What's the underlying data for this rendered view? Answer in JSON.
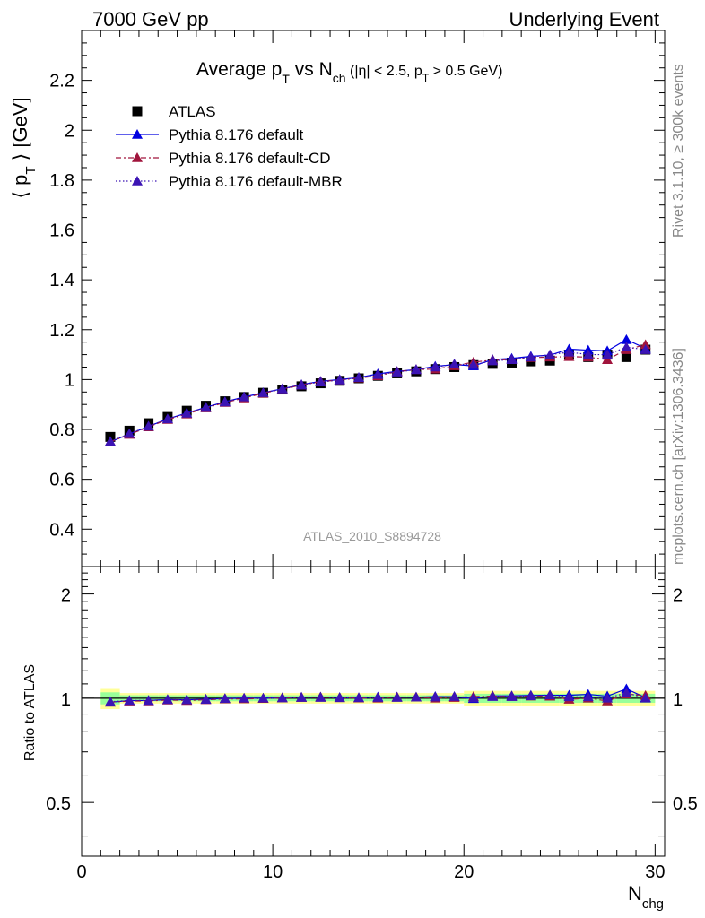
{
  "header": {
    "left": "7000 GeV pp",
    "right": "Underlying Event"
  },
  "side_labels": {
    "rivet": "Rivet 3.1.10, ≥ 300k events",
    "mcplots": "mcplots.cern.ch [arXiv:1306.3436]"
  },
  "analysis_id": "ATLAS_2010_S8894728",
  "colors": {
    "atlas": "#000000",
    "default": "#0000e0",
    "cd": "#a0143c",
    "mbr": "#3c14b4",
    "band_inner": "#99ff99",
    "band_outer": "#ffff99"
  },
  "chart_data": [
    {
      "type": "scatter",
      "title_main": "Average p",
      "title_sub_T": "T",
      "title_vs": " vs N",
      "title_sub_ch": "ch",
      "title_cond_a": " (|η| < 2.5, p",
      "title_cond_sub": "T",
      "title_cond_b": " > 0.5 GeV)",
      "ylabel_prefix": "⟨ p",
      "ylabel_sub": "T",
      "ylabel_suffix": " ⟩ [GeV]",
      "xlim": [
        0,
        30.5
      ],
      "ylim": [
        0.25,
        2.4
      ],
      "yticks": [
        0.4,
        0.6,
        0.8,
        1,
        1.2,
        1.4,
        1.6,
        1.8,
        2,
        2.2
      ],
      "ytick_labels": [
        "0.4",
        "0.6",
        "0.8",
        "1",
        "1.2",
        "1.4",
        "1.6",
        "1.8",
        "2",
        "2.2"
      ],
      "x": [
        1.5,
        2.5,
        3.5,
        4.5,
        5.5,
        6.5,
        7.5,
        8.5,
        9.5,
        10.5,
        11.5,
        12.5,
        13.5,
        14.5,
        15.5,
        16.5,
        17.5,
        18.5,
        19.5,
        20.5,
        21.5,
        22.5,
        23.5,
        24.5,
        25.5,
        26.5,
        27.5,
        28.5,
        29.5
      ],
      "series": [
        {
          "name": "ATLAS",
          "marker": "square",
          "values": [
            0.77,
            0.795,
            0.825,
            0.85,
            0.875,
            0.895,
            0.913,
            0.93,
            0.947,
            0.96,
            0.973,
            0.985,
            0.995,
            1.005,
            1.015,
            1.025,
            1.033,
            1.042,
            1.05,
            1.058,
            1.063,
            1.068,
            1.073,
            1.076,
            1.1,
            1.09,
            1.1,
            1.09,
            1.12
          ]
        },
        {
          "name": "Pythia 8.176 default",
          "marker": "triangle",
          "line": "solid",
          "values": [
            0.75,
            0.782,
            0.812,
            0.842,
            0.866,
            0.889,
            0.911,
            0.93,
            0.947,
            0.963,
            0.98,
            0.993,
            1.0,
            1.008,
            1.023,
            1.033,
            1.04,
            1.053,
            1.06,
            1.055,
            1.08,
            1.085,
            1.093,
            1.098,
            1.122,
            1.118,
            1.115,
            1.16,
            1.125
          ]
        },
        {
          "name": "Pythia 8.176 default-CD",
          "marker": "triangle",
          "line": "dashdot",
          "values": [
            0.75,
            0.78,
            0.81,
            0.84,
            0.862,
            0.886,
            0.908,
            0.926,
            0.945,
            0.962,
            0.978,
            0.992,
            0.998,
            1.006,
            1.015,
            1.032,
            1.04,
            1.042,
            1.055,
            1.07,
            1.078,
            1.08,
            1.088,
            1.09,
            1.092,
            1.09,
            1.08,
            1.12,
            1.14
          ]
        },
        {
          "name": "Pythia 8.176 default-MBR",
          "marker": "triangle",
          "line": "dotted",
          "values": [
            0.752,
            0.783,
            0.813,
            0.842,
            0.865,
            0.888,
            0.91,
            0.93,
            0.947,
            0.962,
            0.978,
            0.99,
            0.998,
            1.008,
            1.02,
            1.03,
            1.04,
            1.05,
            1.062,
            1.06,
            1.075,
            1.08,
            1.09,
            1.1,
            1.11,
            1.1,
            1.1,
            1.13,
            1.12
          ]
        }
      ],
      "legend_position": "top-left"
    },
    {
      "type": "scatter",
      "ylabel": "Ratio to ATLAS",
      "xlabel_main": "N",
      "xlabel_sub": "chg",
      "xlim": [
        0,
        30.5
      ],
      "ylim": [
        0.35,
        2.4
      ],
      "log_y": true,
      "yticks": [
        0.5,
        1,
        2
      ],
      "ytick_labels": [
        "0.5",
        "1",
        "2"
      ],
      "xticks": [
        0,
        10,
        20,
        30
      ],
      "xtick_labels": [
        "0",
        "10",
        "20",
        "30"
      ],
      "band_inner": [
        0.04,
        0.02,
        0.02,
        0.02,
        0.02,
        0.02,
        0.02,
        0.02,
        0.02,
        0.02,
        0.02,
        0.02,
        0.02,
        0.02,
        0.02,
        0.02,
        0.02,
        0.02,
        0.02,
        0.03,
        0.03,
        0.03,
        0.03,
        0.03,
        0.03,
        0.03,
        0.03,
        0.03,
        0.03
      ],
      "band_outer": [
        0.07,
        0.035,
        0.035,
        0.035,
        0.035,
        0.035,
        0.035,
        0.035,
        0.035,
        0.035,
        0.035,
        0.035,
        0.035,
        0.035,
        0.035,
        0.035,
        0.035,
        0.035,
        0.035,
        0.05,
        0.05,
        0.05,
        0.05,
        0.05,
        0.05,
        0.05,
        0.05,
        0.05,
        0.05
      ],
      "series": [
        {
          "name": "Pythia 8.176 default",
          "values": [
            0.974,
            0.984,
            0.985,
            0.991,
            0.99,
            0.993,
            0.998,
            1.0,
            1.0,
            1.003,
            1.007,
            1.008,
            1.005,
            1.003,
            1.008,
            1.008,
            1.007,
            1.011,
            1.01,
            0.997,
            1.016,
            1.016,
            1.019,
            1.02,
            1.02,
            1.026,
            1.014,
            1.064,
            1.004
          ]
        },
        {
          "name": "Pythia 8.176 default-CD",
          "values": [
            0.974,
            0.981,
            0.982,
            0.988,
            0.985,
            0.99,
            0.995,
            0.996,
            0.998,
            1.002,
            1.005,
            1.007,
            1.003,
            1.001,
            1.0,
            1.007,
            1.007,
            1.0,
            1.005,
            1.011,
            1.014,
            1.011,
            1.014,
            1.013,
            0.993,
            1.0,
            0.982,
            1.028,
            1.018
          ]
        },
        {
          "name": "Pythia 8.176 default-MBR",
          "values": [
            0.977,
            0.985,
            0.985,
            0.991,
            0.989,
            0.992,
            0.997,
            1.0,
            1.0,
            1.002,
            1.005,
            1.005,
            1.003,
            1.003,
            1.005,
            1.005,
            1.007,
            1.008,
            1.011,
            1.002,
            1.011,
            1.011,
            1.016,
            1.022,
            1.009,
            1.009,
            1.0,
            1.037,
            1.0
          ]
        }
      ]
    }
  ]
}
